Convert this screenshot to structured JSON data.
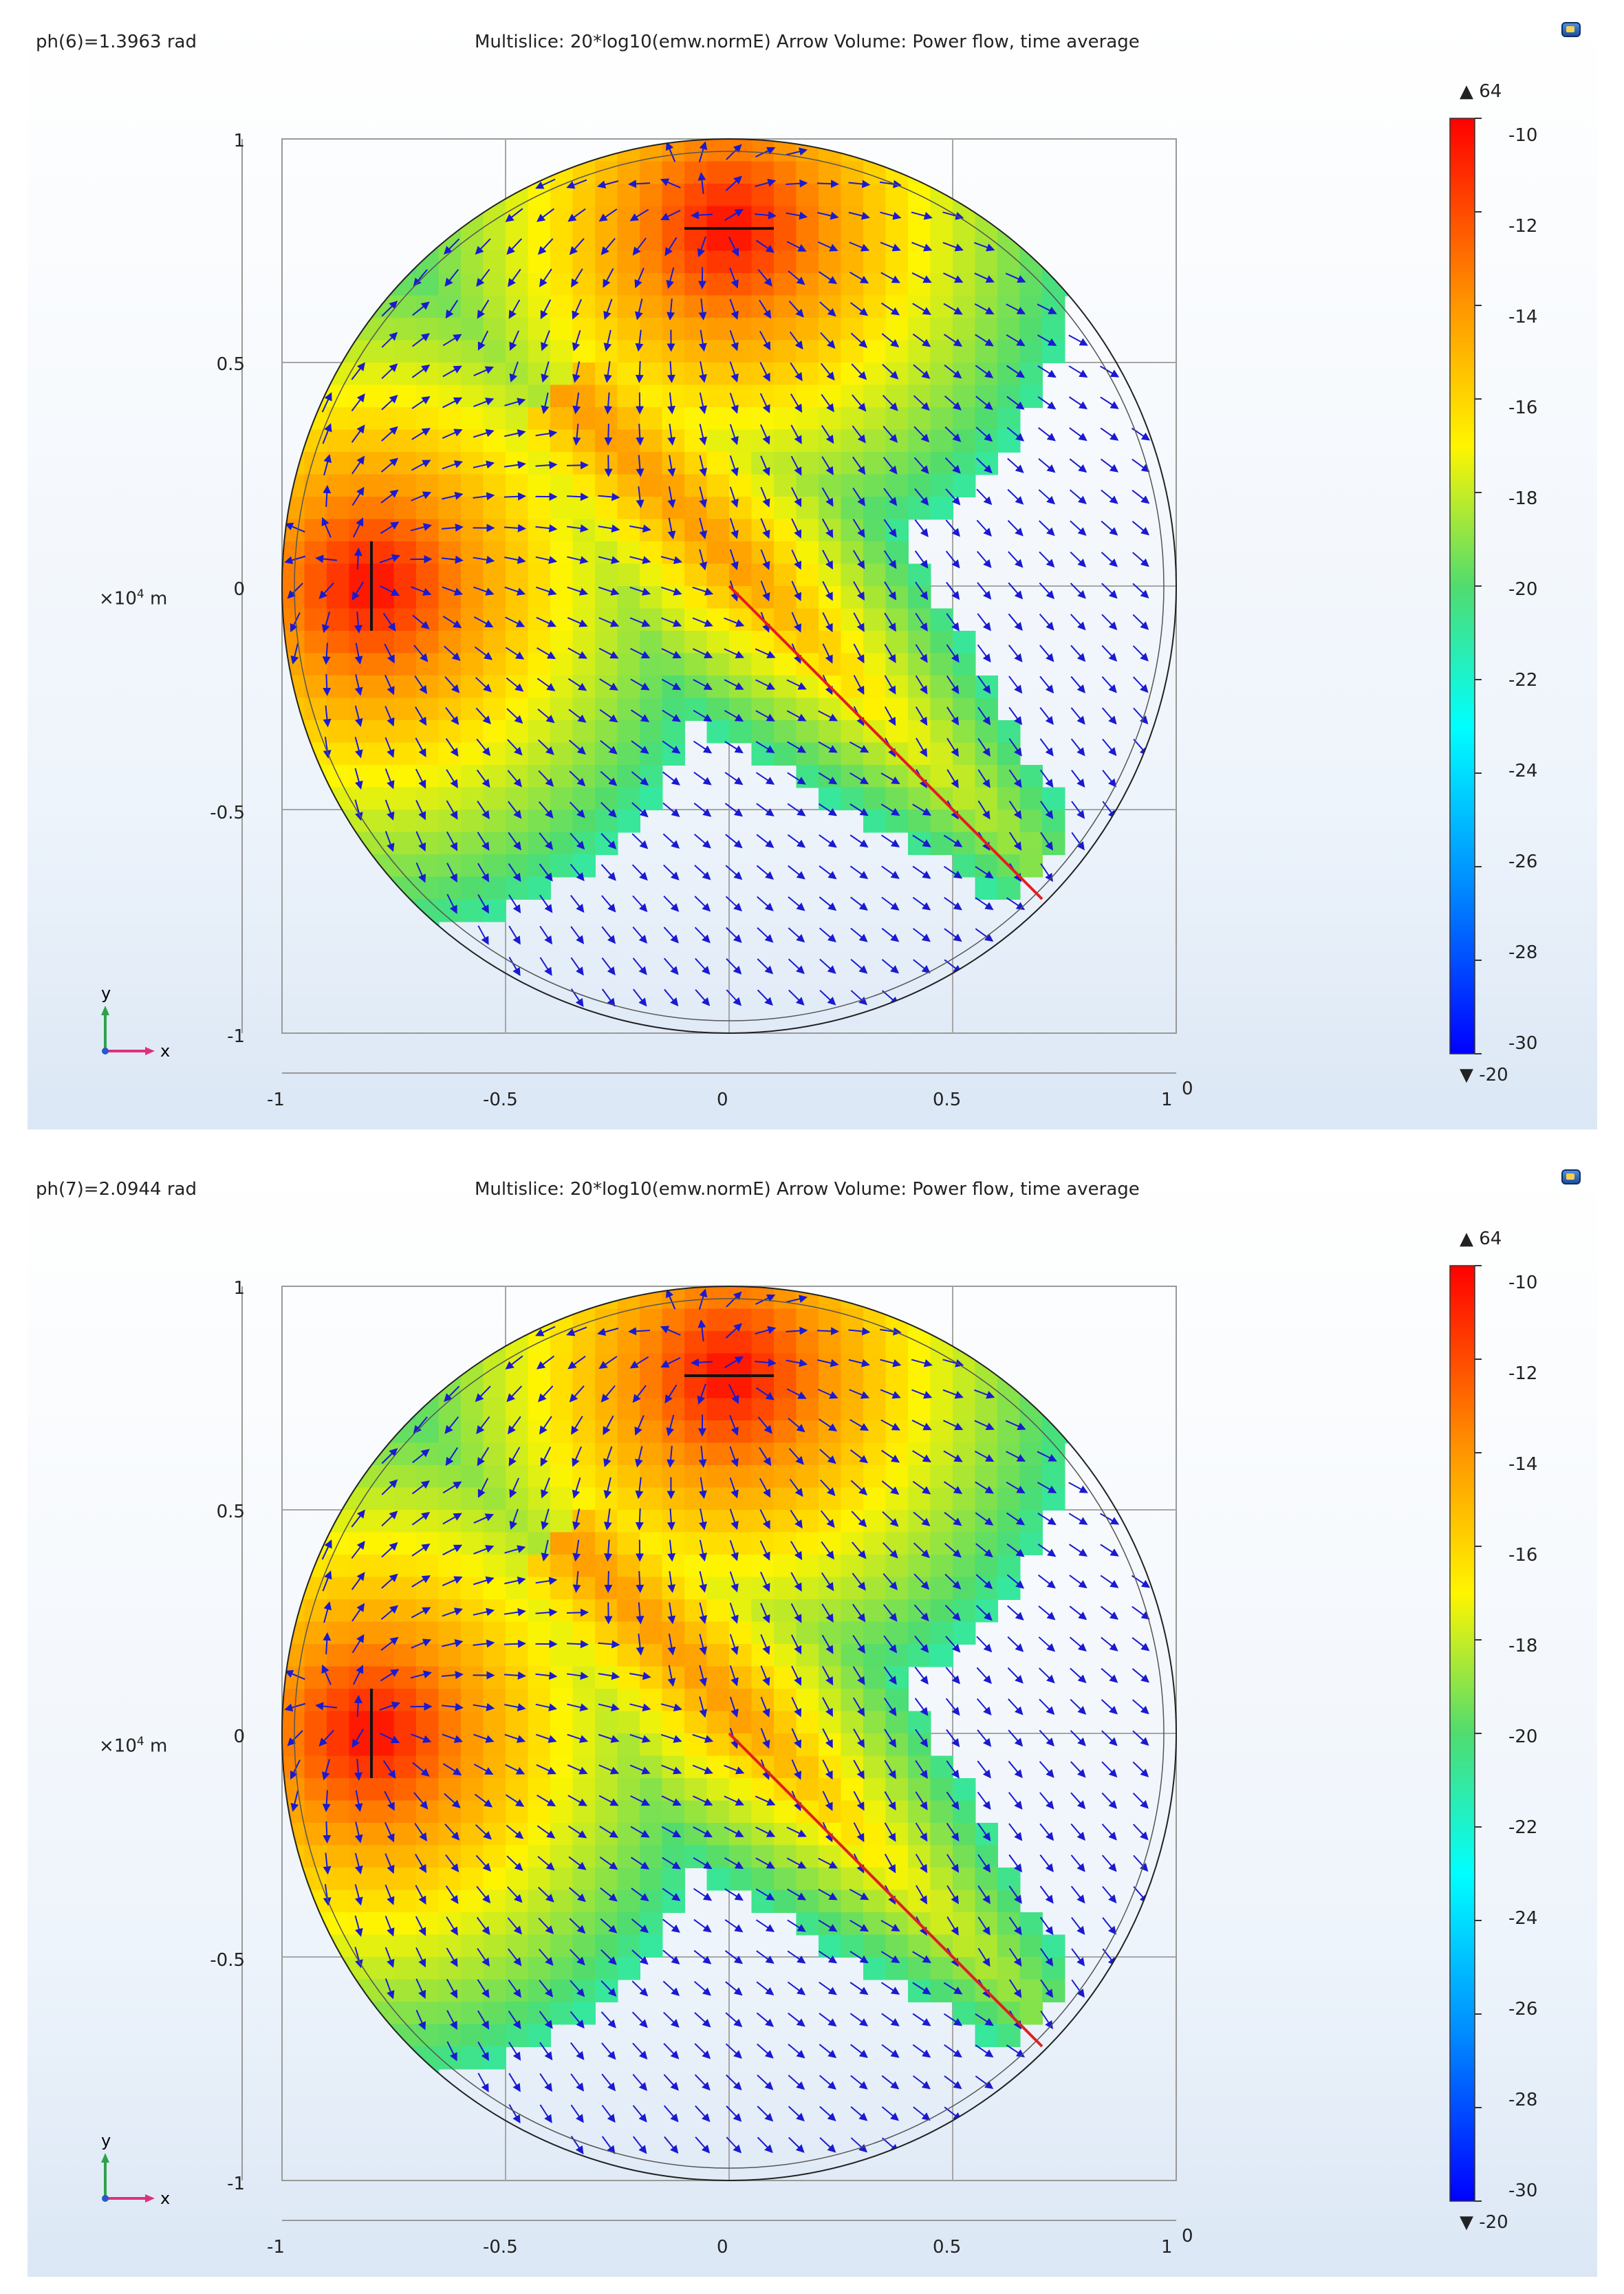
{
  "panels": [
    {
      "phase_label": "ph(6)=1.3963 rad",
      "title": "Multislice: 20*log10(emw.normE)  Arrow Volume: Power flow, time average",
      "colorbar": {
        "max_marker": "▲ 64",
        "min_marker": "▼ -20",
        "labels": [
          "-10",
          "-12",
          "-14",
          "-16",
          "-18",
          "-20",
          "-22",
          "-24",
          "-26",
          "-28",
          "-30"
        ]
      },
      "x_ticks": [
        "-1",
        "-0.5",
        "0",
        "0.5",
        "1"
      ],
      "x_corner": "0",
      "y_ticks": [
        "1",
        "0.5",
        "0",
        "-0.5",
        "-1"
      ],
      "axis_unit": "×10",
      "axis_unit_exp": "4",
      "axis_unit_suffix": " m",
      "triad": {
        "y": "y",
        "x": "x"
      }
    },
    {
      "phase_label": "ph(7)=2.0944 rad",
      "title": "Multislice: 20*log10(emw.normE)  Arrow Volume: Power flow, time average",
      "colorbar": {
        "max_marker": "▲ 64",
        "min_marker": "▼ -20",
        "labels": [
          "-10",
          "-12",
          "-14",
          "-16",
          "-18",
          "-20",
          "-22",
          "-24",
          "-26",
          "-28",
          "-30"
        ]
      },
      "x_ticks": [
        "-1",
        "-0.5",
        "0",
        "0.5",
        "1"
      ],
      "x_corner": "0",
      "y_ticks": [
        "1",
        "0.5",
        "0",
        "-0.5",
        "-1"
      ],
      "axis_unit": "×10",
      "axis_unit_exp": "4",
      "axis_unit_suffix": " m",
      "triad": {
        "y": "y",
        "x": "x"
      }
    }
  ],
  "chart_data": [
    {
      "type": "heatmap",
      "title": "Multislice: 20*log10(emw.normE)  Arrow Volume: Power flow, time average",
      "phase": "ph(6)=1.3963 rad",
      "xlim": [
        -1,
        1
      ],
      "ylim": [
        -1,
        1
      ],
      "axis_scale": "×10^4 m",
      "color_range": [
        -30,
        -10
      ],
      "color_range_extrema": {
        "max": 64,
        "min": -20
      },
      "colormap": "rainbow",
      "domain": "circle radius 1",
      "sources": [
        {
          "name": "dipole-top",
          "x": 0,
          "y": 0.8,
          "orientation": "horizontal"
        },
        {
          "name": "dipole-left",
          "x": -0.8,
          "y": 0,
          "orientation": "vertical"
        }
      ],
      "beam_line": {
        "from": [
          0,
          0
        ],
        "to": [
          0.7,
          -0.7
        ],
        "color": "#e02020"
      },
      "arrows": "power flow, time average"
    },
    {
      "type": "heatmap",
      "title": "Multislice: 20*log10(emw.normE)  Arrow Volume: Power flow, time average",
      "phase": "ph(7)=2.0944 rad",
      "xlim": [
        -1,
        1
      ],
      "ylim": [
        -1,
        1
      ],
      "axis_scale": "×10^4 m",
      "color_range": [
        -30,
        -10
      ],
      "color_range_extrema": {
        "max": 64,
        "min": -20
      },
      "colormap": "rainbow",
      "domain": "circle radius 1",
      "sources": [
        {
          "name": "dipole-top",
          "x": 0,
          "y": 0.8,
          "orientation": "horizontal"
        },
        {
          "name": "dipole-left",
          "x": -0.8,
          "y": 0,
          "orientation": "vertical"
        }
      ],
      "beam_line": {
        "from": [
          0,
          0
        ],
        "to": [
          0.7,
          -0.7
        ],
        "color": "#e02020"
      },
      "arrows": "power flow, time average"
    }
  ]
}
